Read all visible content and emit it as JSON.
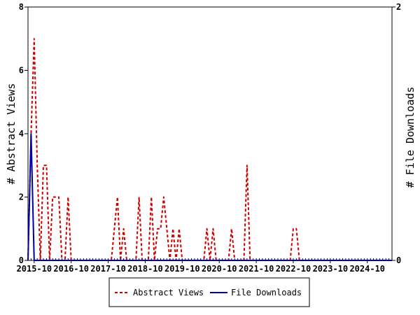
{
  "chart_data": {
    "type": "line",
    "title": "",
    "x_tick_labels": [
      "2015-10",
      "2016-10",
      "2017-10",
      "2018-10",
      "2019-10",
      "2020-10",
      "2021-10",
      "2022-10",
      "2023-10",
      "2024-10"
    ],
    "y_left_label": "# Abstract Views",
    "y_right_label": "# File Downloads",
    "y_left_ticks": [
      "0",
      "2",
      "4",
      "6",
      "8"
    ],
    "y_right_ticks": [
      "0",
      "2"
    ],
    "y_left_lim": [
      0,
      8
    ],
    "y_right_lim": [
      0,
      2
    ],
    "x_start_month": "2015-08",
    "x_end_month": "2025-06",
    "grid": false,
    "legend_position": "bottom",
    "series": [
      {
        "name": "Abstract Views",
        "axis": "left",
        "color": "#cc0000",
        "style": "dashed",
        "points": [
          [
            "2015-08",
            0
          ],
          [
            "2015-09",
            4
          ],
          [
            "2015-10",
            7
          ],
          [
            "2015-11",
            3
          ],
          [
            "2015-12",
            0
          ],
          [
            "2016-01",
            3
          ],
          [
            "2016-02",
            3
          ],
          [
            "2016-03",
            0
          ],
          [
            "2016-04",
            2
          ],
          [
            "2016-05",
            2
          ],
          [
            "2016-06",
            2
          ],
          [
            "2016-07",
            0
          ],
          [
            "2016-08",
            0
          ],
          [
            "2016-09",
            2
          ],
          [
            "2016-10",
            0
          ],
          [
            "2017-11",
            0
          ],
          [
            "2017-12",
            1
          ],
          [
            "2018-01",
            2
          ],
          [
            "2018-02",
            0
          ],
          [
            "2018-03",
            1
          ],
          [
            "2018-04",
            0
          ],
          [
            "2018-07",
            0
          ],
          [
            "2018-08",
            2
          ],
          [
            "2018-09",
            0
          ],
          [
            "2018-11",
            0
          ],
          [
            "2018-12",
            2
          ],
          [
            "2019-01",
            0
          ],
          [
            "2019-02",
            1
          ],
          [
            "2019-03",
            1
          ],
          [
            "2019-04",
            2
          ],
          [
            "2019-05",
            1
          ],
          [
            "2019-06",
            0
          ],
          [
            "2019-07",
            1
          ],
          [
            "2019-08",
            0
          ],
          [
            "2019-09",
            1
          ],
          [
            "2019-10",
            0
          ],
          [
            "2020-05",
            0
          ],
          [
            "2020-06",
            1
          ],
          [
            "2020-07",
            0
          ],
          [
            "2020-08",
            1
          ],
          [
            "2020-09",
            0
          ],
          [
            "2021-01",
            0
          ],
          [
            "2021-02",
            1
          ],
          [
            "2021-03",
            0
          ],
          [
            "2021-06",
            0
          ],
          [
            "2021-07",
            3
          ],
          [
            "2021-08",
            0
          ],
          [
            "2022-09",
            0
          ],
          [
            "2022-10",
            1
          ],
          [
            "2022-11",
            1
          ],
          [
            "2022-12",
            0
          ],
          [
            "2025-06",
            0
          ]
        ]
      },
      {
        "name": "File Downloads",
        "axis": "right",
        "color": "#0000aa",
        "style": "solid",
        "points": [
          [
            "2015-08",
            0
          ],
          [
            "2015-09",
            1
          ],
          [
            "2015-10",
            0
          ],
          [
            "2015-11",
            0
          ],
          [
            "2025-06",
            0
          ]
        ]
      }
    ]
  }
}
